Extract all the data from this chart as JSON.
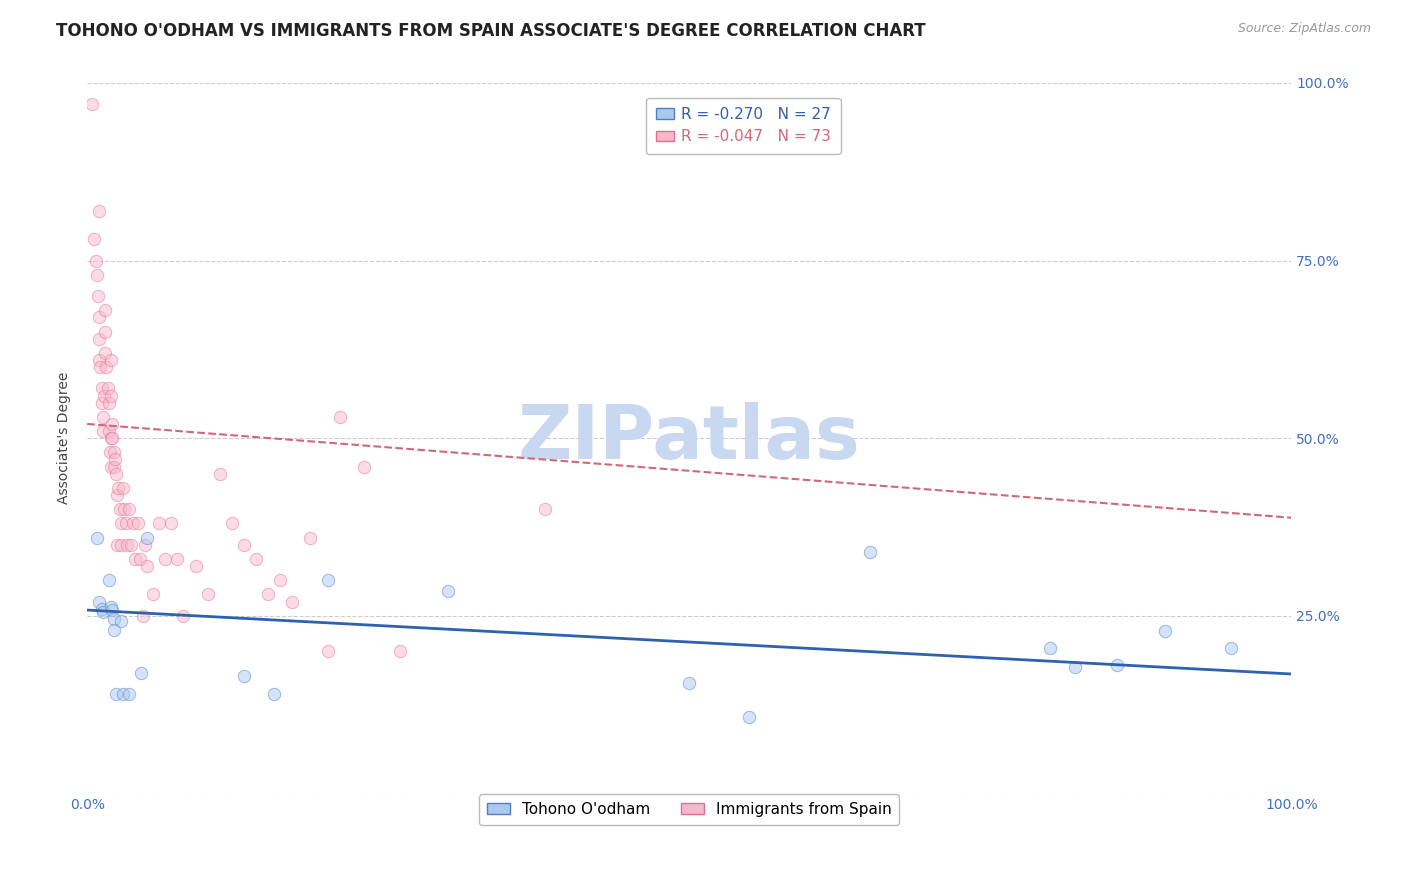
{
  "title": "TOHONO O'ODHAM VS IMMIGRANTS FROM SPAIN ASSOCIATE'S DEGREE CORRELATION CHART",
  "source": "Source: ZipAtlas.com",
  "ylabel": "Associate's Degree",
  "xlim": [
    0.0,
    1.0
  ],
  "ylim": [
    0.0,
    1.0
  ],
  "xtick_labels": [
    "0.0%",
    "",
    "",
    "",
    "100.0%"
  ],
  "xtick_vals": [
    0.0,
    0.25,
    0.5,
    0.75,
    1.0
  ],
  "ytick_labels_left": [
    "",
    "",
    "",
    "",
    ""
  ],
  "ytick_labels_right": [
    "",
    "25.0%",
    "50.0%",
    "75.0%",
    "100.0%"
  ],
  "ytick_vals": [
    0.0,
    0.25,
    0.5,
    0.75,
    1.0
  ],
  "blue_fill_color": "#aac8f0",
  "pink_fill_color": "#f8b8cc",
  "blue_edge_color": "#5080c0",
  "pink_edge_color": "#e07090",
  "blue_line_color": "#3060b0",
  "pink_line_color": "#d06878",
  "R_blue": -0.27,
  "N_blue": 27,
  "R_pink": -0.047,
  "N_pink": 73,
  "legend_label_blue": "Tohono O'odham",
  "legend_label_pink": "Immigrants from Spain",
  "watermark": "ZIPatlas",
  "watermark_color": "#c8d8f0",
  "blue_points_x": [
    0.008,
    0.01,
    0.012,
    0.013,
    0.018,
    0.02,
    0.021,
    0.022,
    0.022,
    0.024,
    0.028,
    0.03,
    0.035,
    0.045,
    0.05,
    0.13,
    0.155,
    0.2,
    0.3,
    0.5,
    0.55,
    0.65,
    0.8,
    0.82,
    0.855,
    0.895,
    0.95
  ],
  "blue_points_y": [
    0.36,
    0.27,
    0.26,
    0.255,
    0.3,
    0.262,
    0.258,
    0.245,
    0.23,
    0.14,
    0.242,
    0.14,
    0.14,
    0.17,
    0.36,
    0.165,
    0.14,
    0.3,
    0.285,
    0.155,
    0.108,
    0.34,
    0.205,
    0.178,
    0.18,
    0.228,
    0.204
  ],
  "pink_points_x": [
    0.004,
    0.006,
    0.007,
    0.008,
    0.009,
    0.01,
    0.01,
    0.01,
    0.01,
    0.011,
    0.012,
    0.012,
    0.013,
    0.013,
    0.014,
    0.015,
    0.015,
    0.015,
    0.016,
    0.017,
    0.018,
    0.018,
    0.019,
    0.02,
    0.02,
    0.02,
    0.02,
    0.021,
    0.021,
    0.022,
    0.022,
    0.023,
    0.024,
    0.025,
    0.025,
    0.026,
    0.027,
    0.028,
    0.028,
    0.03,
    0.031,
    0.032,
    0.033,
    0.035,
    0.036,
    0.038,
    0.04,
    0.042,
    0.044,
    0.046,
    0.048,
    0.05,
    0.055,
    0.06,
    0.065,
    0.07,
    0.075,
    0.08,
    0.09,
    0.1,
    0.11,
    0.12,
    0.13,
    0.14,
    0.15,
    0.16,
    0.17,
    0.185,
    0.2,
    0.21,
    0.23,
    0.26,
    0.38
  ],
  "pink_points_y": [
    0.97,
    0.78,
    0.75,
    0.73,
    0.7,
    0.82,
    0.67,
    0.64,
    0.61,
    0.6,
    0.57,
    0.55,
    0.53,
    0.51,
    0.56,
    0.68,
    0.65,
    0.62,
    0.6,
    0.57,
    0.55,
    0.51,
    0.48,
    0.61,
    0.56,
    0.5,
    0.46,
    0.52,
    0.5,
    0.48,
    0.46,
    0.47,
    0.45,
    0.42,
    0.35,
    0.43,
    0.4,
    0.38,
    0.35,
    0.43,
    0.4,
    0.38,
    0.35,
    0.4,
    0.35,
    0.38,
    0.33,
    0.38,
    0.33,
    0.25,
    0.35,
    0.32,
    0.28,
    0.38,
    0.33,
    0.38,
    0.33,
    0.25,
    0.32,
    0.28,
    0.45,
    0.38,
    0.35,
    0.33,
    0.28,
    0.3,
    0.27,
    0.36,
    0.2,
    0.53,
    0.46,
    0.2,
    0.4
  ],
  "blue_trend_y0": 0.258,
  "blue_trend_y1": 0.168,
  "pink_trend_y0": 0.52,
  "pink_trend_y1": 0.388,
  "title_fontsize": 12,
  "source_fontsize": 9,
  "axis_label_fontsize": 10,
  "tick_fontsize": 10,
  "legend_fontsize": 11,
  "marker_size": 80,
  "marker_alpha": 0.5
}
